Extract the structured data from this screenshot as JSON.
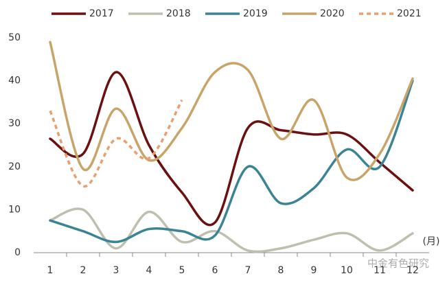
{
  "chart_data": {
    "type": "line",
    "categories": [
      "1",
      "2",
      "3",
      "4",
      "5",
      "6",
      "7",
      "8",
      "9",
      "10",
      "11",
      "12"
    ],
    "series": [
      {
        "name": "2017",
        "color": "#6b1010",
        "values": [
          26.5,
          23,
          42,
          25,
          14,
          7,
          29,
          28.5,
          27.5,
          27.5,
          21,
          14.5
        ]
      },
      {
        "name": "2018",
        "color": "#bfbfb0",
        "values": [
          7.5,
          10,
          1,
          9.5,
          2.5,
          5,
          0.5,
          1,
          3,
          4.5,
          0.5,
          4.5
        ]
      },
      {
        "name": "2019",
        "color": "#3a8494",
        "values": [
          7.5,
          5,
          2.5,
          5.5,
          5,
          4,
          20,
          11.5,
          15,
          24,
          20,
          40
        ]
      },
      {
        "name": "2020",
        "color": "#c8a469",
        "values": [
          49,
          19.5,
          33.5,
          21.5,
          29,
          42,
          42.5,
          26.5,
          35.5,
          17.5,
          23,
          40.5
        ]
      },
      {
        "name": "2021",
        "color": "#e9a070",
        "dashed": true,
        "values": [
          33,
          15.5,
          26.5,
          22,
          35.5,
          null,
          null,
          null,
          null,
          null,
          null,
          null
        ]
      }
    ],
    "ylim": [
      0,
      50
    ],
    "yticks": [
      0,
      10,
      20,
      30,
      40,
      50
    ],
    "grid": false,
    "x_unit": "(月)",
    "watermark": "中金有色研究",
    "legend": "top"
  }
}
